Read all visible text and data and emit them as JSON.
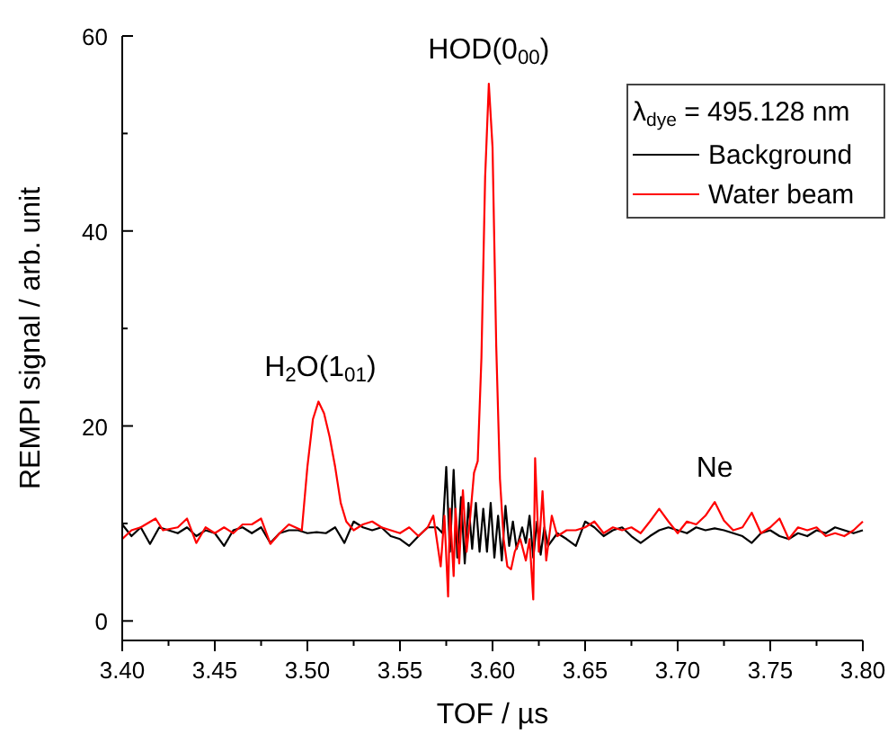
{
  "chart_data": {
    "type": "line",
    "xlabel": "TOF / µs",
    "ylabel": "REMPI signal / arb. unit",
    "legend_title": "λ$_{dye}$ = 495.128 nm",
    "legend": "top right",
    "grid": false,
    "marker": "none",
    "line_style": "solid",
    "xlim": [
      3.4,
      3.8
    ],
    "ylim": [
      -2,
      60
    ],
    "xticks": [
      {
        "value": 3.4,
        "label": "3.40"
      },
      {
        "value": 3.425,
        "label": null
      },
      {
        "value": 3.45,
        "label": "3.45"
      },
      {
        "value": 3.475,
        "label": null
      },
      {
        "value": 3.5,
        "label": "3.50"
      },
      {
        "value": 3.525,
        "label": null
      },
      {
        "value": 3.55,
        "label": "3.55"
      },
      {
        "value": 3.575,
        "label": null
      },
      {
        "value": 3.6,
        "label": "3.60"
      },
      {
        "value": 3.625,
        "label": null
      },
      {
        "value": 3.65,
        "label": "3.65"
      },
      {
        "value": 3.675,
        "label": null
      },
      {
        "value": 3.7,
        "label": "3.70"
      },
      {
        "value": 3.725,
        "label": null
      },
      {
        "value": 3.75,
        "label": "3.75"
      },
      {
        "value": 3.775,
        "label": null
      },
      {
        "value": 3.8,
        "label": "3.80"
      }
    ],
    "yticks": [
      0,
      {
        "value": 10,
        "label": null
      },
      20,
      {
        "value": 30,
        "label": null
      },
      40,
      {
        "value": 50,
        "label": null
      },
      60
    ],
    "annotations": [
      {
        "text": "H$_{2}$O(1$_{01}$)",
        "x": 3.507,
        "y": 22.5
      },
      {
        "text": "HOD(0$_{00}$)",
        "x": 3.598,
        "y": 55.1
      },
      {
        "text": "Ne",
        "x": 3.72,
        "y": 12.2
      }
    ],
    "series": [
      {
        "name": "Background",
        "color": "#000000",
        "x": [
          3.4,
          3.405,
          3.41,
          3.415,
          3.42,
          3.425,
          3.43,
          3.435,
          3.44,
          3.445,
          3.45,
          3.455,
          3.46,
          3.465,
          3.47,
          3.475,
          3.48,
          3.485,
          3.49,
          3.495,
          3.5,
          3.505,
          3.51,
          3.515,
          3.52,
          3.525,
          3.53,
          3.535,
          3.54,
          3.545,
          3.55,
          3.555,
          3.56,
          3.565,
          3.57,
          3.573,
          3.575,
          3.577,
          3.579,
          3.581,
          3.583,
          3.585,
          3.587,
          3.589,
          3.591,
          3.593,
          3.595,
          3.597,
          3.599,
          3.601,
          3.603,
          3.605,
          3.607,
          3.609,
          3.611,
          3.613,
          3.616,
          3.618,
          3.62,
          3.622,
          3.624,
          3.626,
          3.628,
          3.63,
          3.635,
          3.64,
          3.645,
          3.65,
          3.655,
          3.66,
          3.665,
          3.67,
          3.675,
          3.68,
          3.685,
          3.69,
          3.695,
          3.7,
          3.705,
          3.71,
          3.715,
          3.72,
          3.725,
          3.73,
          3.735,
          3.74,
          3.745,
          3.75,
          3.755,
          3.76,
          3.765,
          3.77,
          3.775,
          3.78,
          3.785,
          3.79,
          3.795,
          3.8
        ],
        "values": [
          9.9,
          8.7,
          9.6,
          7.9,
          9.6,
          9.3,
          9.0,
          9.6,
          8.7,
          9.3,
          9.0,
          7.7,
          9.3,
          9.6,
          9.0,
          9.6,
          8.0,
          9.0,
          9.3,
          9.3,
          9.0,
          9.1,
          9.0,
          9.6,
          8.0,
          10.2,
          9.6,
          9.3,
          9.6,
          8.7,
          8.4,
          7.7,
          8.7,
          9.6,
          9.6,
          9.0,
          15.8,
          7.1,
          15.5,
          6.5,
          12.7,
          5.9,
          12.1,
          7.4,
          12.1,
          7.1,
          11.5,
          7.1,
          12.1,
          6.5,
          10.8,
          6.2,
          11.8,
          7.7,
          10.2,
          7.4,
          9.6,
          8.0,
          10.8,
          6.5,
          10.2,
          6.8,
          9.6,
          7.7,
          9.0,
          8.4,
          7.7,
          10.2,
          9.6,
          8.7,
          9.3,
          9.6,
          8.7,
          8.0,
          8.7,
          9.3,
          9.6,
          9.3,
          9.0,
          9.6,
          9.3,
          9.5,
          9.3,
          9.0,
          8.7,
          8.0,
          9.0,
          9.3,
          8.7,
          8.4,
          9.0,
          8.7,
          9.3,
          9.0,
          9.6,
          9.3,
          9.0,
          9.3
        ]
      },
      {
        "name": "Water beam",
        "color": "#ff0000",
        "x": [
          3.4,
          3.405,
          3.41,
          3.418,
          3.422,
          3.43,
          3.435,
          3.44,
          3.445,
          3.45,
          3.455,
          3.46,
          3.465,
          3.47,
          3.475,
          3.48,
          3.485,
          3.49,
          3.497,
          3.5,
          3.503,
          3.506,
          3.509,
          3.512,
          3.515,
          3.518,
          3.521,
          3.525,
          3.53,
          3.535,
          3.54,
          3.545,
          3.55,
          3.555,
          3.56,
          3.565,
          3.568,
          3.572,
          3.574,
          3.576,
          3.577,
          3.579,
          3.58,
          3.582,
          3.584,
          3.586,
          3.588,
          3.59,
          3.592,
          3.594,
          3.596,
          3.598,
          3.6,
          3.602,
          3.604,
          3.606,
          3.608,
          3.61,
          3.612,
          3.615,
          3.618,
          3.62,
          3.622,
          3.623,
          3.625,
          3.627,
          3.629,
          3.632,
          3.635,
          3.64,
          3.645,
          3.65,
          3.655,
          3.66,
          3.665,
          3.67,
          3.675,
          3.68,
          3.685,
          3.69,
          3.695,
          3.7,
          3.705,
          3.71,
          3.715,
          3.72,
          3.725,
          3.73,
          3.735,
          3.74,
          3.745,
          3.75,
          3.755,
          3.76,
          3.765,
          3.77,
          3.775,
          3.78,
          3.785,
          3.79,
          3.795,
          3.8
        ],
        "values": [
          8.4,
          9.3,
          9.6,
          10.5,
          9.3,
          9.6,
          10.5,
          8.0,
          9.6,
          9.0,
          9.6,
          9.0,
          9.9,
          9.9,
          10.5,
          7.9,
          9.0,
          9.9,
          9.3,
          15.8,
          20.7,
          22.5,
          21.3,
          18.9,
          15.8,
          12.1,
          10.2,
          9.3,
          9.9,
          10.2,
          9.6,
          9.3,
          9.0,
          9.6,
          8.7,
          9.6,
          10.8,
          5.6,
          10.8,
          2.5,
          11.5,
          4.6,
          11.5,
          5.9,
          13.4,
          7.1,
          10.8,
          15.2,
          16.4,
          27,
          45.5,
          55.1,
          48.6,
          28.2,
          14.6,
          8.4,
          5.6,
          5.3,
          7.1,
          8.4,
          6.2,
          8.4,
          2.2,
          16.7,
          7.1,
          13.3,
          6.2,
          10.8,
          8.7,
          9.3,
          9.3,
          9.6,
          10.2,
          9.0,
          9.6,
          9.3,
          9.6,
          9.0,
          10.2,
          11.5,
          10.2,
          9.0,
          10.2,
          9.9,
          10.8,
          12.2,
          10.3,
          9.3,
          9.6,
          11.1,
          9.0,
          9.6,
          10.5,
          8.4,
          9.6,
          9.3,
          9.6,
          8.7,
          9.0,
          8.7,
          9.3,
          10.2
        ]
      }
    ]
  }
}
